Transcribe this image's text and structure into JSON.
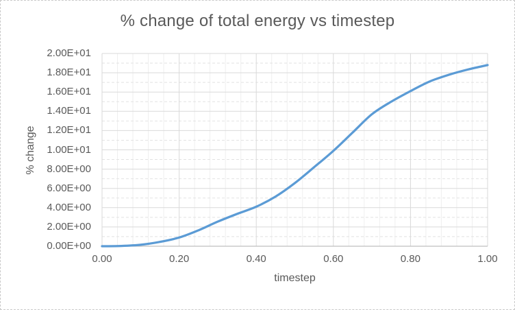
{
  "window": {
    "background_color": "#ffffff",
    "border_color": "#c9c9c9"
  },
  "styles": {
    "title_color": "#595959",
    "tick_label_color": "#595959",
    "axis_title_color": "#595959",
    "major_grid_color": "#d9d9d9",
    "minor_h_grid_color": "#e2e2e2",
    "minor_v_grid_color": "#efefef",
    "axis_line_color": "#bfbfbf",
    "plot_border_color": "#d9d9d9"
  },
  "chart_data": {
    "type": "line",
    "title": "% change of total energy vs timestep",
    "xlabel": "timestep",
    "ylabel": "% change",
    "xlim": [
      0,
      1
    ],
    "ylim": [
      0,
      20
    ],
    "x_major_step": 0.2,
    "x_minor_step": 0.04,
    "y_major_step": 2,
    "y_minor_step": 1,
    "grid": "major solid + minor dashed horizontal, minor vertical faint",
    "legend": "none",
    "x_tick_labels": [
      "0.00",
      "0.20",
      "0.40",
      "0.60",
      "0.80",
      "1.00"
    ],
    "y_tick_labels": [
      "0.00E+00",
      "2.00E+00",
      "4.00E+00",
      "6.00E+00",
      "8.00E+00",
      "1.00E+01",
      "1.20E+01",
      "1.40E+01",
      "1.60E+01",
      "1.80E+01",
      "2.00E+01"
    ],
    "series": [
      {
        "color": "#5b9bd5",
        "x": [
          0.0,
          0.05,
          0.1,
          0.15,
          0.2,
          0.25,
          0.3,
          0.35,
          0.4,
          0.45,
          0.5,
          0.55,
          0.6,
          0.65,
          0.7,
          0.75,
          0.8,
          0.85,
          0.9,
          0.95,
          1.0
        ],
        "y": [
          0.0,
          0.03,
          0.15,
          0.45,
          0.9,
          1.65,
          2.55,
          3.35,
          4.1,
          5.15,
          6.55,
          8.2,
          9.9,
          11.8,
          13.7,
          15.0,
          16.1,
          17.1,
          17.8,
          18.35,
          18.8
        ]
      }
    ]
  }
}
